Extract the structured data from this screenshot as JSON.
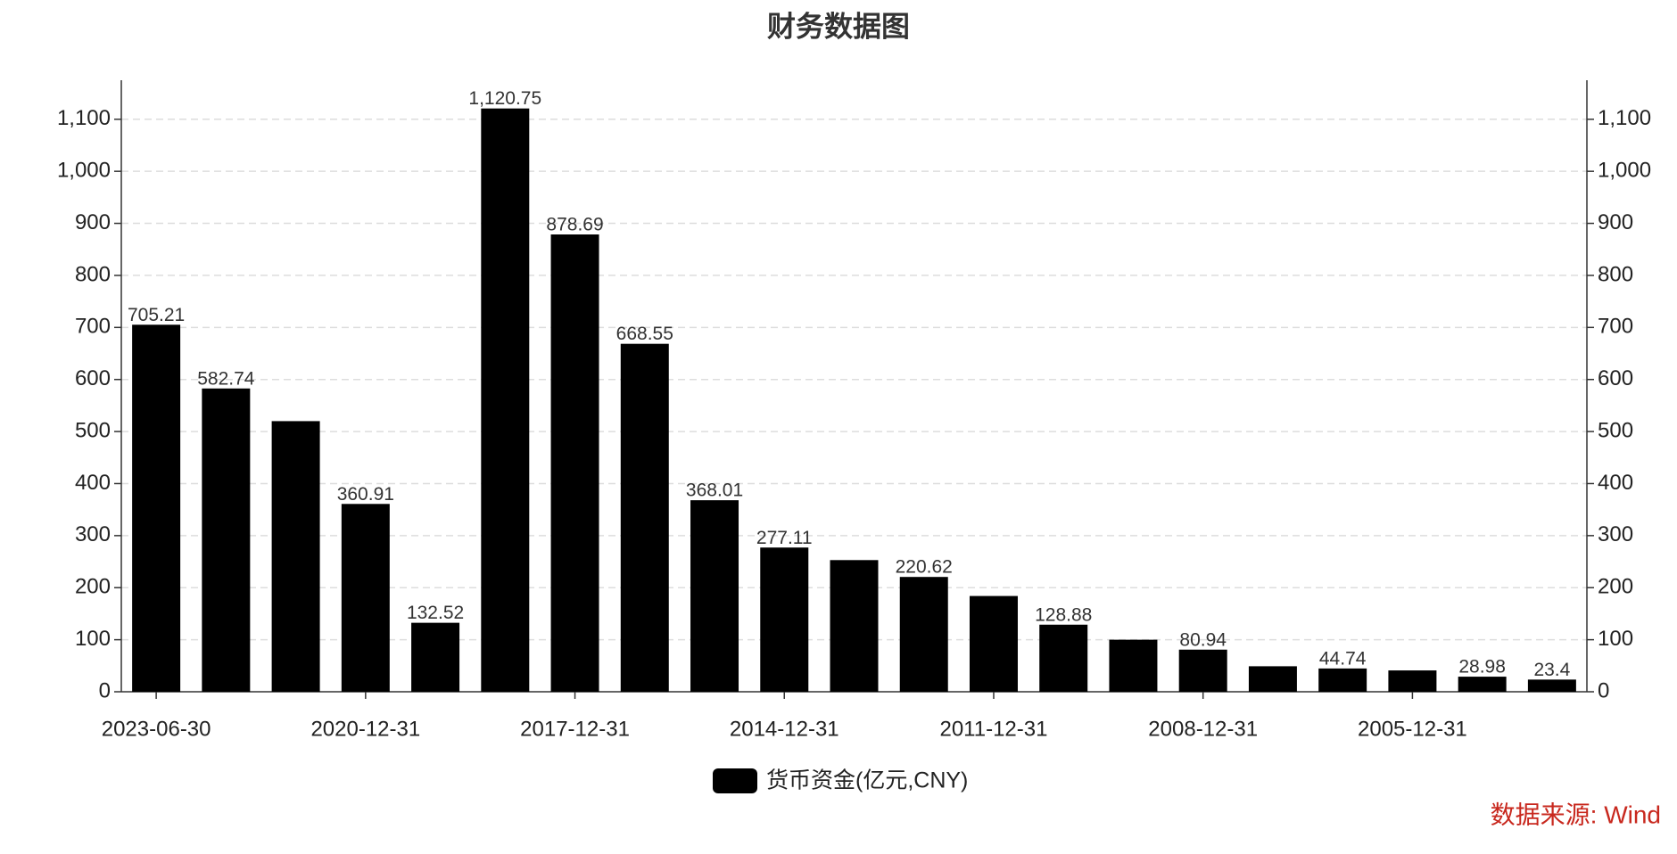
{
  "chart_data": {
    "type": "bar",
    "title": "财务数据图",
    "categories": [
      "2023-06-30",
      null,
      null,
      "2020-12-31",
      null,
      null,
      "2017-12-31",
      null,
      null,
      "2014-12-31",
      null,
      null,
      "2011-12-31",
      null,
      null,
      "2008-12-31",
      null,
      null,
      "2005-12-31",
      null,
      null
    ],
    "series": [
      {
        "name": "货币资金(亿元,CNY)",
        "color": "#000000",
        "values": [
          705.21,
          582.74,
          520,
          360.91,
          132.52,
          1120.75,
          878.69,
          668.55,
          368.01,
          277.11,
          253,
          220.62,
          184,
          128.88,
          100,
          80.94,
          49,
          44.74,
          41,
          28.98,
          23.4
        ],
        "value_labels": [
          "705.21",
          "582.74",
          null,
          "360.91",
          "132.52",
          "1,120.75",
          "878.69",
          "668.55",
          "368.01",
          "277.11",
          null,
          "220.62",
          null,
          "128.88",
          null,
          "80.94",
          null,
          "44.74",
          null,
          "28.98",
          "23.4"
        ]
      }
    ],
    "ylim": [
      0,
      1175
    ],
    "yticks": [
      0,
      100,
      200,
      300,
      400,
      500,
      600,
      700,
      800,
      900,
      {
        "value": 1000,
        "label": "1,000"
      },
      {
        "value": 1100,
        "label": "1,100"
      }
    ],
    "grid": true,
    "legend": "bottom",
    "source": "数据来源: Wind"
  }
}
